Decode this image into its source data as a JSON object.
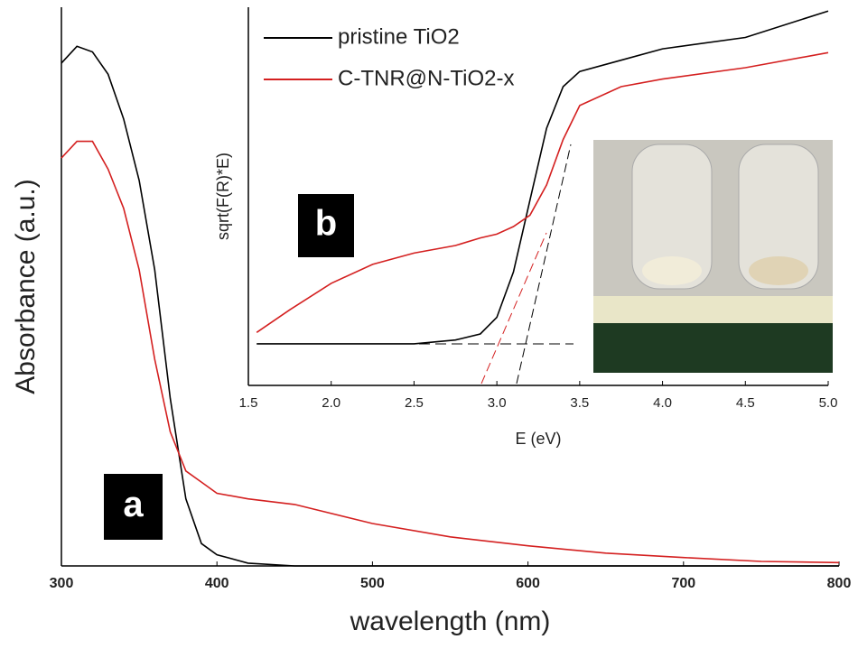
{
  "chart_data": [
    {
      "type": "line",
      "x_label": "wavelength (nm)",
      "y_label": "Absorbance (a.u.)",
      "annotation": "a",
      "x": [
        300,
        310,
        320,
        330,
        340,
        350,
        360,
        370,
        380,
        390,
        400,
        420,
        450,
        500,
        550,
        600,
        650,
        700,
        750,
        800
      ],
      "series": [
        {
          "name": "pristine TiO2",
          "color": "#000000",
          "values": [
            0.9,
            0.93,
            0.92,
            0.88,
            0.8,
            0.69,
            0.53,
            0.3,
            0.12,
            0.04,
            0.02,
            0.005,
            0,
            0,
            0,
            0,
            0,
            0,
            0,
            0
          ]
        },
        {
          "name": "C-TNR@N-TiO2-x",
          "color": "#d42020",
          "values": [
            0.73,
            0.76,
            0.76,
            0.71,
            0.64,
            0.53,
            0.37,
            0.24,
            0.17,
            0.15,
            0.13,
            0.12,
            0.11,
            0.076,
            0.052,
            0.036,
            0.023,
            0.015,
            0.008,
            0.006
          ]
        }
      ],
      "xlim": [
        300,
        800
      ],
      "xticks": [
        300,
        400,
        500,
        600,
        700,
        800
      ],
      "ylim": [
        0,
        1
      ]
    },
    {
      "type": "line",
      "x_label": "E (eV)",
      "y_label": "sqrt(F(R)*E)",
      "annotation": "b",
      "x": [
        1.55,
        1.75,
        2.0,
        2.25,
        2.5,
        2.75,
        2.9,
        3.0,
        3.1,
        3.2,
        3.3,
        3.4,
        3.5,
        3.75,
        4.0,
        4.5,
        5.0
      ],
      "series": [
        {
          "name": "pristine TiO2",
          "color": "#000000",
          "values": [
            0.11,
            0.11,
            0.11,
            0.11,
            0.11,
            0.12,
            0.136,
            0.18,
            0.3,
            0.49,
            0.68,
            0.79,
            0.83,
            0.86,
            0.89,
            0.92,
            0.99
          ]
        },
        {
          "name": "C-TNR@N-TiO2-x",
          "color": "#d42020",
          "values": [
            0.14,
            0.2,
            0.27,
            0.32,
            0.35,
            0.37,
            0.39,
            0.4,
            0.42,
            0.45,
            0.53,
            0.65,
            0.74,
            0.79,
            0.81,
            0.84,
            0.88
          ]
        }
      ],
      "xlim": [
        1.5,
        5.0
      ],
      "xticks": [
        1.5,
        {
          "value": 2,
          "label": "2.0"
        },
        2.5,
        {
          "value": 3,
          "label": "3.0"
        },
        3.5,
        {
          "value": 4,
          "label": "4.0"
        },
        4.5,
        {
          "value": 5,
          "label": "5.0"
        }
      ],
      "ylim": [
        0,
        1
      ],
      "legend": "upper left"
    }
  ]
}
